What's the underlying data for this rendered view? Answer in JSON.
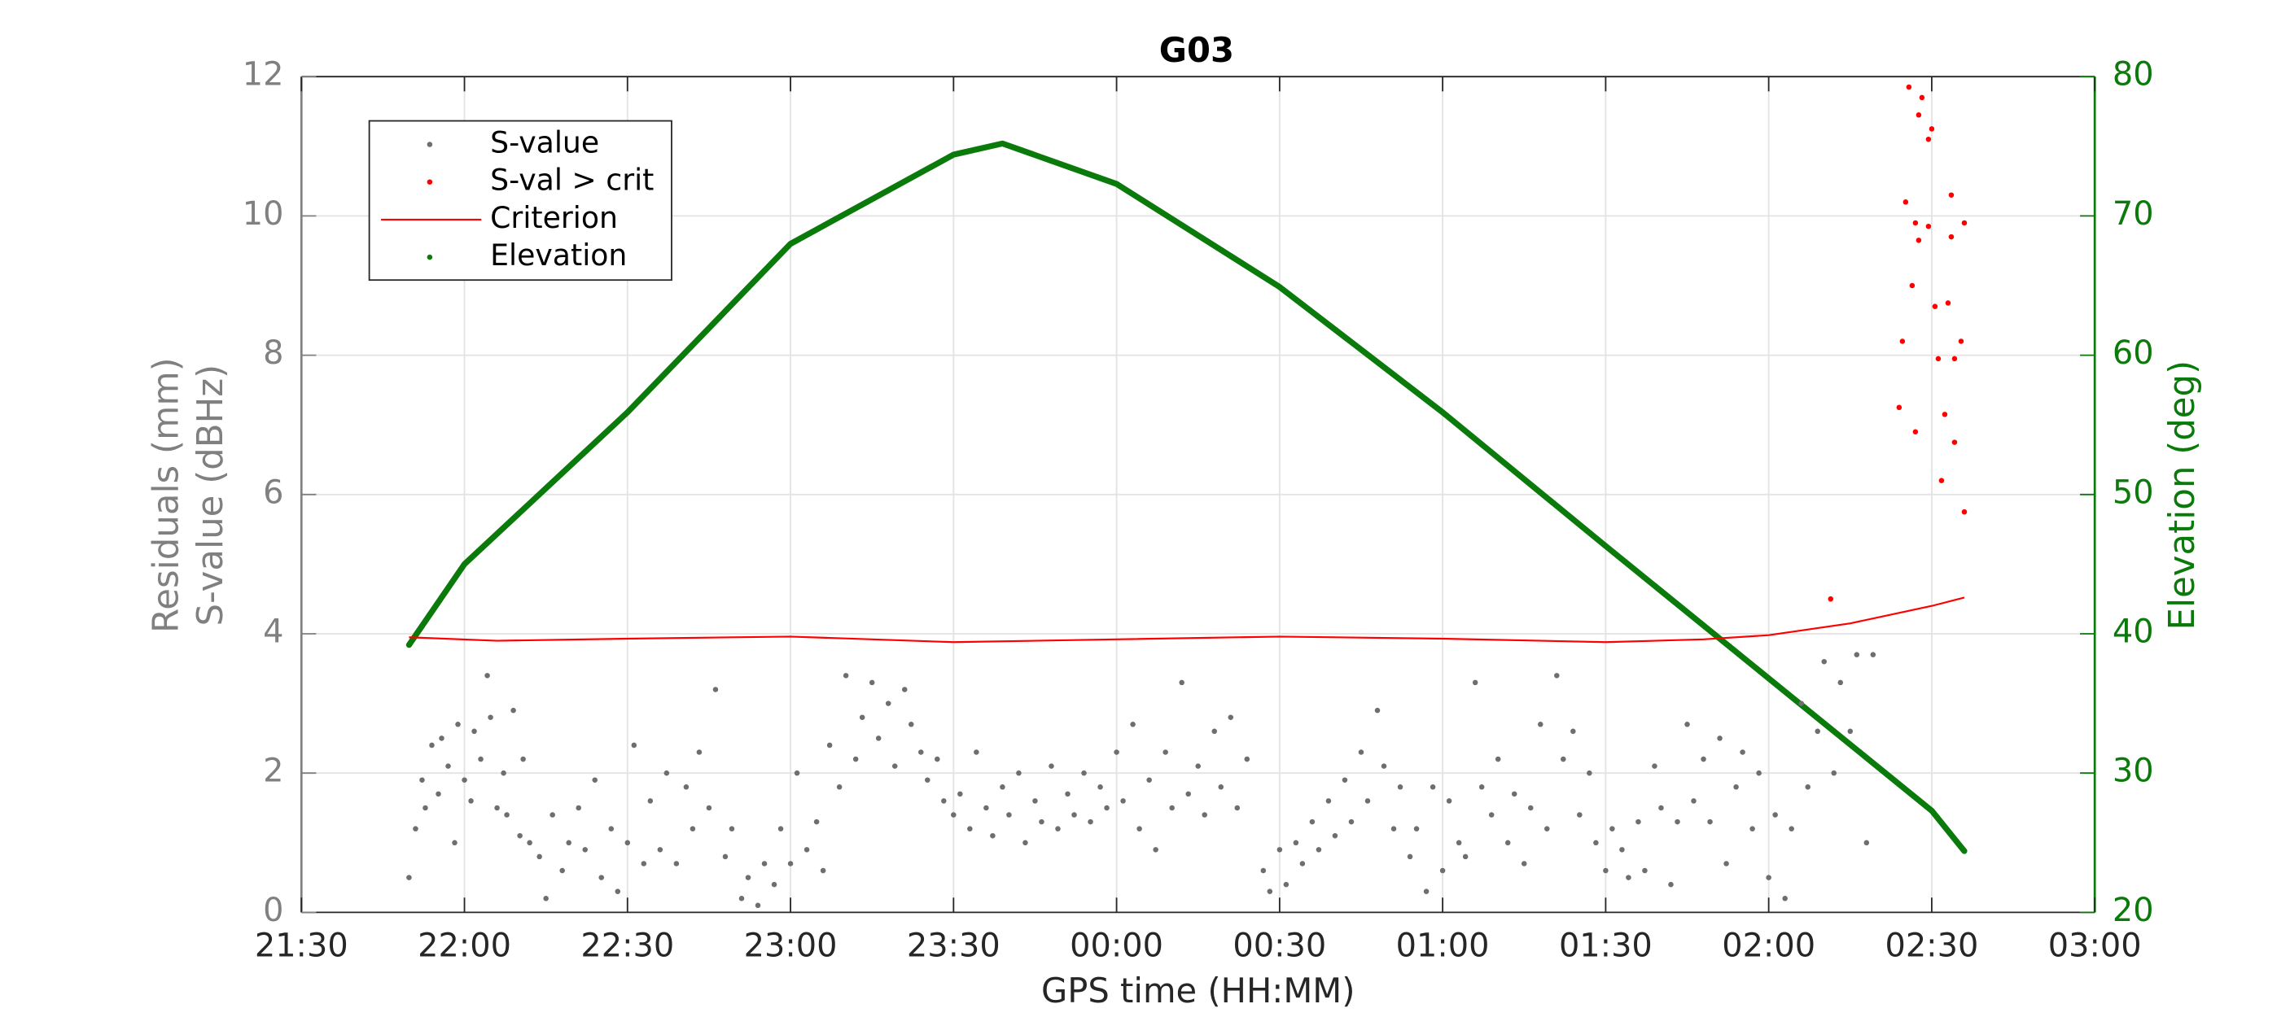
{
  "chart_data": {
    "type": "scatter",
    "title": "G03",
    "xlabel": "GPS time (HH:MM)",
    "ylabel": [
      "Residuals (mm)",
      "S-value (dBHz)"
    ],
    "y2label": "Elevation (deg)",
    "xlim": [
      21.5,
      27
    ],
    "xticks": [
      {
        "value": 21.5,
        "label": "21:30"
      },
      {
        "value": 22,
        "label": "22:00"
      },
      {
        "value": 22.5,
        "label": "22:30"
      },
      {
        "value": 23,
        "label": "23:00"
      },
      {
        "value": 23.5,
        "label": "23:30"
      },
      {
        "value": 24,
        "label": "00:00"
      },
      {
        "value": 24.5,
        "label": "00:30"
      },
      {
        "value": 25,
        "label": "01:00"
      },
      {
        "value": 25.5,
        "label": "01:30"
      },
      {
        "value": 26,
        "label": "02:00"
      },
      {
        "value": 26.5,
        "label": "02:30"
      },
      {
        "value": 27,
        "label": "03:00"
      }
    ],
    "ylim": [
      0,
      12
    ],
    "yticks": [
      0,
      2,
      4,
      6,
      8,
      10,
      12
    ],
    "y2lim": [
      20,
      80
    ],
    "y2ticks": [
      20,
      30,
      40,
      50,
      60,
      70,
      80
    ],
    "grid": true,
    "legend": "upper left",
    "left_axis_color": "#808080",
    "right_axis_color": "#0a7a0a",
    "series": [
      {
        "name": "S-value",
        "color": "#6e6e6e",
        "mode": "markers",
        "x": [
          21.83,
          21.85,
          21.87,
          21.88,
          21.9,
          21.92,
          21.93,
          21.95,
          21.97,
          21.98,
          22.0,
          22.02,
          22.03,
          22.05,
          22.07,
          22.08,
          22.1,
          22.12,
          22.13,
          22.15,
          22.17,
          22.18,
          22.2,
          22.23,
          22.25,
          22.27,
          22.3,
          22.32,
          22.35,
          22.37,
          22.4,
          22.42,
          22.45,
          22.47,
          22.5,
          22.52,
          22.55,
          22.57,
          22.6,
          22.62,
          22.65,
          22.68,
          22.7,
          22.72,
          22.75,
          22.77,
          22.8,
          22.82,
          22.85,
          22.87,
          22.9,
          22.92,
          22.95,
          22.97,
          23.0,
          23.02,
          23.05,
          23.08,
          23.1,
          23.12,
          23.15,
          23.17,
          23.2,
          23.22,
          23.25,
          23.27,
          23.3,
          23.32,
          23.35,
          23.37,
          23.4,
          23.42,
          23.45,
          23.47,
          23.5,
          23.52,
          23.55,
          23.57,
          23.6,
          23.62,
          23.65,
          23.67,
          23.7,
          23.72,
          23.75,
          23.77,
          23.8,
          23.82,
          23.85,
          23.87,
          23.9,
          23.92,
          23.95,
          23.97,
          24.0,
          24.02,
          24.05,
          24.07,
          24.1,
          24.12,
          24.15,
          24.17,
          24.2,
          24.22,
          24.25,
          24.27,
          24.3,
          24.32,
          24.35,
          24.37,
          24.4,
          24.45,
          24.47,
          24.5,
          24.52,
          24.55,
          24.57,
          24.6,
          24.62,
          24.65,
          24.67,
          24.7,
          24.72,
          24.75,
          24.77,
          24.8,
          24.82,
          24.85,
          24.87,
          24.9,
          24.92,
          24.95,
          24.97,
          25.0,
          25.02,
          25.05,
          25.07,
          25.1,
          25.12,
          25.15,
          25.17,
          25.2,
          25.22,
          25.25,
          25.27,
          25.3,
          25.32,
          25.35,
          25.37,
          25.4,
          25.42,
          25.45,
          25.47,
          25.5,
          25.52,
          25.55,
          25.57,
          25.6,
          25.62,
          25.65,
          25.67,
          25.7,
          25.72,
          25.75,
          25.77,
          25.8,
          25.82,
          25.85,
          25.87,
          25.9,
          25.92,
          25.95,
          25.97,
          26.0,
          26.02,
          26.05,
          26.07,
          26.1,
          26.12,
          26.15,
          26.17,
          26.2,
          26.22,
          26.25,
          26.27,
          26.3,
          26.32
        ],
        "values": [
          0.5,
          1.2,
          1.9,
          1.5,
          2.4,
          1.7,
          2.5,
          2.1,
          1.0,
          2.7,
          1.9,
          1.6,
          2.6,
          2.2,
          3.4,
          2.8,
          1.5,
          2.0,
          1.4,
          2.9,
          1.1,
          2.2,
          1.0,
          0.8,
          0.2,
          1.4,
          0.6,
          1.0,
          1.5,
          0.9,
          1.9,
          0.5,
          1.2,
          0.3,
          1.0,
          2.4,
          0.7,
          1.6,
          0.9,
          2.0,
          0.7,
          1.8,
          1.2,
          2.3,
          1.5,
          3.2,
          0.8,
          1.2,
          0.2,
          0.5,
          0.1,
          0.7,
          0.4,
          1.2,
          0.7,
          2.0,
          0.9,
          1.3,
          0.6,
          2.4,
          1.8,
          3.4,
          2.2,
          2.8,
          3.3,
          2.5,
          3.0,
          2.1,
          3.2,
          2.7,
          2.3,
          1.9,
          2.2,
          1.6,
          1.4,
          1.7,
          1.2,
          2.3,
          1.5,
          1.1,
          1.8,
          1.4,
          2.0,
          1.0,
          1.6,
          1.3,
          2.1,
          1.2,
          1.7,
          1.4,
          2.0,
          1.3,
          1.8,
          1.5,
          2.3,
          1.6,
          2.7,
          1.2,
          1.9,
          0.9,
          2.3,
          1.5,
          3.3,
          1.7,
          2.1,
          1.4,
          2.6,
          1.8,
          2.8,
          1.5,
          2.2,
          0.6,
          0.3,
          0.9,
          0.4,
          1.0,
          0.7,
          1.3,
          0.9,
          1.6,
          1.1,
          1.9,
          1.3,
          2.3,
          1.6,
          2.9,
          2.1,
          1.2,
          1.8,
          0.8,
          1.2,
          0.3,
          1.8,
          0.6,
          1.6,
          1.0,
          0.8,
          3.3,
          1.8,
          1.4,
          2.2,
          1.0,
          1.7,
          0.7,
          1.5,
          2.7,
          1.2,
          3.4,
          2.2,
          2.6,
          1.4,
          2.0,
          1.0,
          0.6,
          1.2,
          0.9,
          0.5,
          1.3,
          0.6,
          2.1,
          1.5,
          0.4,
          1.3,
          2.7,
          1.6,
          2.2,
          1.3,
          2.5,
          0.7,
          1.8,
          2.3,
          1.2,
          2.0,
          0.5,
          1.4,
          0.2,
          1.2,
          3.0,
          1.8,
          2.6,
          3.6,
          2.0,
          3.3,
          2.6,
          3.7,
          1.0,
          3.7
        ]
      },
      {
        "name": "S-val > crit",
        "color": "#ff0000",
        "mode": "markers",
        "x": [
          26.19,
          26.4,
          26.41,
          26.42,
          26.43,
          26.44,
          26.45,
          26.45,
          26.46,
          26.46,
          26.47,
          26.49,
          26.49,
          26.5,
          26.51,
          26.52,
          26.53,
          26.54,
          26.55,
          26.56,
          26.56,
          26.57,
          26.57,
          26.59,
          26.6,
          26.6
        ],
        "values": [
          4.5,
          7.25,
          8.2,
          10.2,
          11.85,
          9.0,
          9.9,
          6.9,
          11.45,
          9.65,
          11.7,
          11.1,
          9.85,
          11.25,
          8.7,
          7.95,
          6.2,
          7.15,
          8.75,
          10.3,
          9.7,
          7.95,
          6.75,
          8.2,
          9.9,
          5.75
        ]
      },
      {
        "name": "Criterion",
        "color": "#ff0000",
        "mode": "line",
        "x": [
          21.83,
          22.1,
          22.5,
          23.0,
          23.5,
          24.0,
          24.5,
          25.0,
          25.5,
          25.8,
          26.0,
          26.25,
          26.5,
          26.6
        ],
        "values": [
          3.95,
          3.9,
          3.93,
          3.96,
          3.88,
          3.92,
          3.96,
          3.93,
          3.88,
          3.92,
          3.98,
          4.15,
          4.4,
          4.52
        ]
      },
      {
        "name": "Elevation",
        "color": "#0a7a0a",
        "mode": "markers-dense",
        "axis": "y2",
        "x": [
          21.83,
          22.0,
          22.5,
          23.0,
          23.5,
          23.65,
          24.0,
          24.5,
          25.0,
          25.5,
          26.0,
          26.5,
          26.6
        ],
        "values": [
          39.2,
          45.0,
          55.9,
          68.0,
          74.4,
          75.2,
          72.3,
          64.9,
          55.9,
          46.3,
          36.8,
          27.3,
          24.4
        ]
      }
    ]
  }
}
